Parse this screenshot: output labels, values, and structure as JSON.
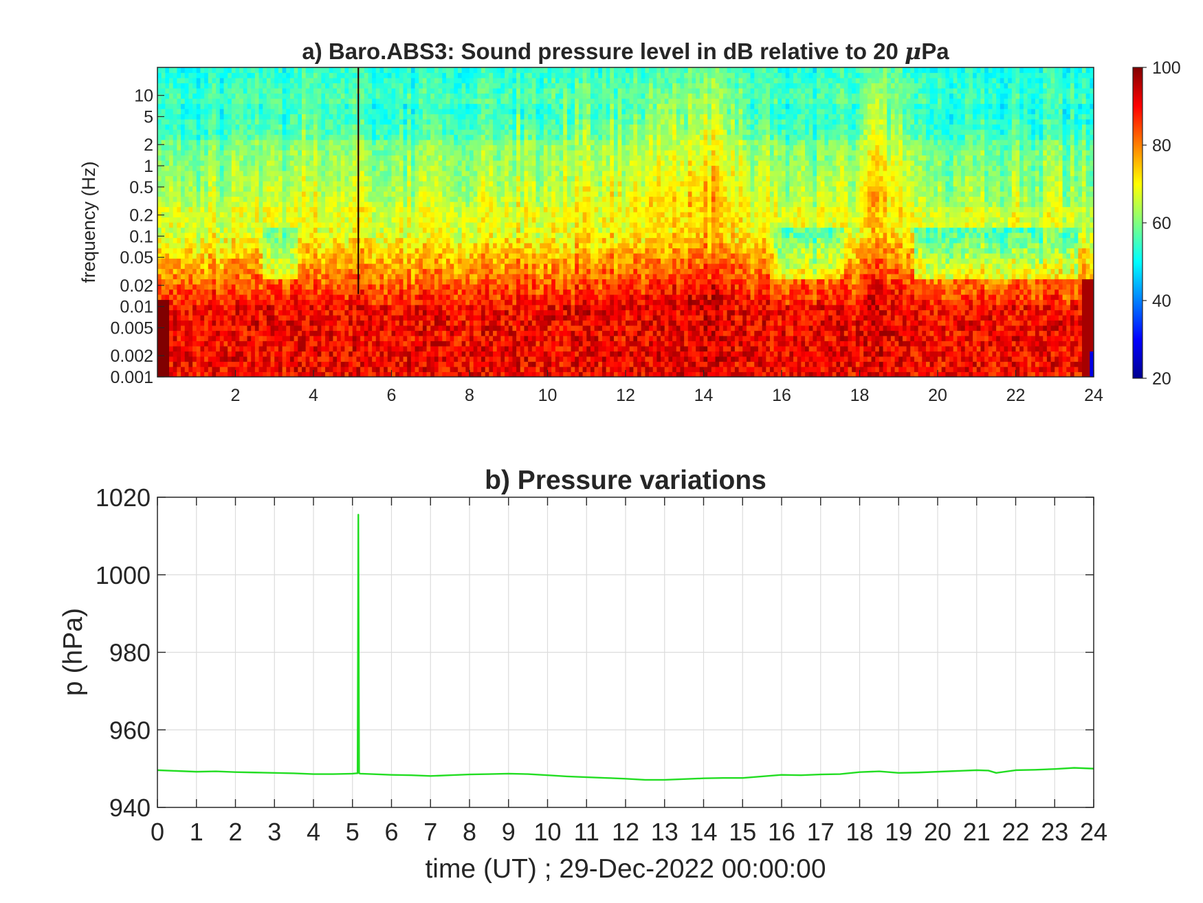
{
  "chart_data": [
    {
      "type": "heatmap",
      "panel": "a",
      "title_prefix": "a) Baro.ABS3: Sound pressure level in dB relative to 20 ",
      "title_mu": "μ",
      "title_suffix": "Pa",
      "xlabel": "",
      "ylabel": "frequency (Hz)",
      "x_scale": "linear",
      "xlim": [
        0,
        24
      ],
      "x_ticks": [
        2,
        4,
        6,
        8,
        10,
        12,
        14,
        16,
        18,
        20,
        22,
        24
      ],
      "y_scale": "log",
      "ylim": [
        0.001,
        25
      ],
      "y_ticks": [
        0.001,
        0.002,
        0.005,
        0.01,
        0.02,
        0.05,
        0.1,
        0.2,
        0.5,
        1,
        2,
        5,
        10
      ],
      "y_tick_labels": [
        "0.001",
        "0.002",
        "0.005",
        "0.01",
        "0.02",
        "0.05",
        "0.1",
        "0.2",
        "0.5",
        "1",
        "2",
        "5",
        "10"
      ],
      "colorbar": {
        "colormap": "jet",
        "range": [
          20,
          100
        ],
        "ticks": [
          20,
          40,
          60,
          80,
          100
        ],
        "unit": "dB"
      },
      "features": [
        {
          "time": 5.15,
          "kind": "impulsive broadband line"
        },
        {
          "time_range": [
            12.9,
            15.4
          ],
          "kind": "high energy bursts reaching ~10 Hz"
        },
        {
          "time_range": [
            17.8,
            19.2
          ],
          "kind": "high energy burst"
        }
      ],
      "colors": {
        "low": "#00008f",
        "mid": "#2fe3e8",
        "high": "#800000"
      }
    },
    {
      "type": "line",
      "panel": "b",
      "title": "b) Pressure variations",
      "xlabel": "time (UT) ; 29-Dec-2022 00:00:00",
      "ylabel": "p (hPa)",
      "xlim": [
        0,
        24
      ],
      "ylim": [
        940,
        1020
      ],
      "x_ticks": [
        0,
        1,
        2,
        3,
        4,
        5,
        6,
        7,
        8,
        9,
        10,
        11,
        12,
        13,
        14,
        15,
        16,
        17,
        18,
        19,
        20,
        21,
        22,
        23,
        24
      ],
      "y_ticks": [
        940,
        960,
        980,
        1000,
        1020
      ],
      "grid": true,
      "series": [
        {
          "color": "#22dd22",
          "x": [
            0,
            0.5,
            1,
            1.5,
            2,
            2.5,
            3,
            3.5,
            4,
            4.5,
            5,
            5.1,
            5.13,
            5.15,
            5.17,
            5.2,
            5.5,
            6,
            6.5,
            7,
            7.5,
            8,
            8.5,
            9,
            9.5,
            10,
            10.5,
            11,
            11.5,
            12,
            12.5,
            13,
            13.5,
            14,
            14.5,
            15,
            15.5,
            16,
            16.5,
            17,
            17.5,
            18,
            18.5,
            19,
            19.5,
            20,
            20.5,
            21,
            21.3,
            21.5,
            22,
            22.5,
            23,
            23.5,
            24
          ],
          "y": [
            949.6,
            949.4,
            949.2,
            949.3,
            949.1,
            949.0,
            948.9,
            948.8,
            948.6,
            948.6,
            948.7,
            948.8,
            948.8,
            1015.5,
            948.8,
            948.7,
            948.6,
            948.4,
            948.3,
            948.1,
            948.3,
            948.5,
            948.6,
            948.7,
            948.6,
            948.3,
            948.0,
            947.8,
            947.6,
            947.4,
            947.1,
            947.1,
            947.3,
            947.5,
            947.6,
            947.6,
            948.0,
            948.4,
            948.3,
            948.5,
            948.6,
            949.1,
            949.3,
            948.9,
            949.0,
            949.2,
            949.4,
            949.6,
            949.5,
            948.9,
            949.6,
            949.7,
            949.9,
            950.2,
            950.0
          ]
        }
      ]
    }
  ]
}
